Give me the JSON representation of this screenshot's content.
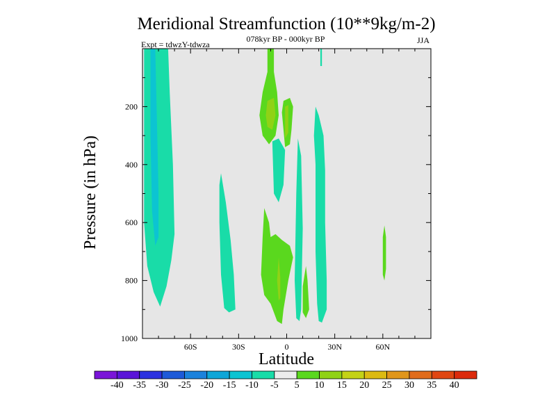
{
  "chart_data": {
    "type": "contour",
    "title": "Meridional Streamfunction (10**9kg/m-2)",
    "subtitle_center": "078kyr BP - 000kyr BP",
    "subtitle_left": "Expt = tdwzY-tdwza",
    "subtitle_right": "JJA",
    "xlabel": "Latitude",
    "ylabel": "Pressure (in hPa)",
    "xlim": [
      -90,
      90
    ],
    "ylim": [
      1000,
      0
    ],
    "x_ticks": [
      {
        "value": -60,
        "label": "60S"
      },
      {
        "value": -30,
        "label": "30S"
      },
      {
        "value": 0,
        "label": "0"
      },
      {
        "value": 30,
        "label": "30N"
      },
      {
        "value": 60,
        "label": "60N"
      }
    ],
    "y_ticks": [
      {
        "value": 200,
        "label": "200"
      },
      {
        "value": 400,
        "label": "400"
      },
      {
        "value": 600,
        "label": "600"
      },
      {
        "value": 800,
        "label": "800"
      },
      {
        "value": 1000,
        "label": "1000"
      }
    ],
    "background_color": "#e6e6e6",
    "colorbar": {
      "labels": [
        "-40",
        "-35",
        "-30",
        "-25",
        "-20",
        "-15",
        "-10",
        "-5",
        "5",
        "10",
        "15",
        "20",
        "25",
        "30",
        "35",
        "40"
      ],
      "colors": [
        "#7a14d8",
        "#5a14d8",
        "#2c32e0",
        "#1e5ad8",
        "#1c82dc",
        "#0ea6d8",
        "#0cc4d2",
        "#19dca8",
        "#ececec",
        "#5ad81e",
        "#90d216",
        "#c4d216",
        "#dcba12",
        "#e0961a",
        "#e06c1c",
        "#e04612",
        "#dc2a0c"
      ]
    },
    "regions": [
      {
        "level": "-5",
        "color": "#19dca8",
        "points": [
          [
            -88,
            0
          ],
          [
            -74,
            0
          ],
          [
            -73,
            150
          ],
          [
            -71,
            400
          ],
          [
            -70,
            640
          ],
          [
            -72,
            730
          ],
          [
            -75,
            820
          ],
          [
            -79,
            890
          ],
          [
            -83,
            840
          ],
          [
            -87,
            750
          ],
          [
            -89,
            600
          ],
          [
            -89,
            0
          ]
        ]
      },
      {
        "level": "-10",
        "color": "#0cc4d2",
        "points": [
          [
            -85,
            0
          ],
          [
            -82,
            0
          ],
          [
            -81,
            250
          ],
          [
            -80,
            500
          ],
          [
            -80,
            650
          ],
          [
            -82,
            680
          ],
          [
            -84,
            560
          ],
          [
            -85,
            300
          ]
        ]
      },
      {
        "level": "-5",
        "color": "#19dca8",
        "points": [
          [
            -41,
            430
          ],
          [
            -38,
            530
          ],
          [
            -35,
            660
          ],
          [
            -33,
            780
          ],
          [
            -32,
            900
          ],
          [
            -36,
            910
          ],
          [
            -39,
            895
          ],
          [
            -41,
            780
          ],
          [
            -42,
            600
          ],
          [
            -42,
            470
          ]
        ]
      },
      {
        "level": "5",
        "color": "#5ad81e",
        "points": [
          [
            -12,
            0
          ],
          [
            -8,
            0
          ],
          [
            -8,
            80
          ],
          [
            -6,
            150
          ],
          [
            -5,
            230
          ],
          [
            -7,
            300
          ],
          [
            -11,
            330
          ],
          [
            -15,
            300
          ],
          [
            -17,
            230
          ],
          [
            -15,
            150
          ],
          [
            -12,
            80
          ]
        ]
      },
      {
        "level": "10",
        "color": "#90d216",
        "points": [
          [
            -12,
            180
          ],
          [
            -8,
            170
          ],
          [
            -7,
            230
          ],
          [
            -9,
            280
          ],
          [
            -12,
            270
          ],
          [
            -13,
            230
          ]
        ]
      },
      {
        "level": "5",
        "color": "#5ad81e",
        "points": [
          [
            -2,
            180
          ],
          [
            2,
            170
          ],
          [
            4,
            200
          ],
          [
            3,
            280
          ],
          [
            2,
            330
          ],
          [
            -1,
            340
          ],
          [
            -2,
            280
          ],
          [
            -3,
            220
          ]
        ]
      },
      {
        "level": "10",
        "color": "#90d216",
        "points": [
          [
            -1,
            200
          ],
          [
            1,
            195
          ],
          [
            1,
            290
          ],
          [
            -1,
            310
          ]
        ]
      },
      {
        "level": "-5",
        "color": "#19dca8",
        "points": [
          [
            -9,
            320
          ],
          [
            -5,
            310
          ],
          [
            -1,
            350
          ],
          [
            -2,
            470
          ],
          [
            -5,
            530
          ],
          [
            -8,
            500
          ]
        ]
      },
      {
        "level": "-5",
        "color": "#19dca8",
        "points": [
          [
            7,
            310
          ],
          [
            9,
            370
          ],
          [
            10,
            620
          ],
          [
            9,
            900
          ],
          [
            8,
            940
          ],
          [
            6,
            930
          ],
          [
            5,
            800
          ],
          [
            6,
            500
          ]
        ]
      },
      {
        "level": "5",
        "color": "#5ad81e",
        "points": [
          [
            -14,
            550
          ],
          [
            -11,
            600
          ],
          [
            -10,
            650
          ],
          [
            -7,
            640
          ],
          [
            -3,
            660
          ],
          [
            2,
            680
          ],
          [
            4,
            720
          ],
          [
            1,
            800
          ],
          [
            -2,
            900
          ],
          [
            -3,
            950
          ],
          [
            -6,
            940
          ],
          [
            -10,
            880
          ],
          [
            -14,
            850
          ],
          [
            -16,
            780
          ],
          [
            -15,
            650
          ]
        ]
      },
      {
        "level": "10",
        "color": "#90d216",
        "points": [
          [
            -5,
            720
          ],
          [
            -4,
            790
          ],
          [
            -4,
            860
          ],
          [
            -5,
            870
          ],
          [
            -6,
            800
          ]
        ]
      },
      {
        "level": "5",
        "color": "#5ad81e",
        "points": [
          [
            12,
            750
          ],
          [
            13,
            800
          ],
          [
            14,
            900
          ],
          [
            12,
            930
          ],
          [
            10,
            910
          ],
          [
            10,
            820
          ]
        ]
      },
      {
        "level": "-5",
        "color": "#19dca8",
        "points": [
          [
            18,
            200
          ],
          [
            20,
            230
          ],
          [
            23,
            300
          ],
          [
            24,
            420
          ],
          [
            24,
            600
          ],
          [
            25,
            800
          ],
          [
            25,
            900
          ],
          [
            22,
            945
          ],
          [
            20,
            940
          ],
          [
            19,
            880
          ],
          [
            18,
            700
          ],
          [
            18,
            400
          ],
          [
            17,
            300
          ]
        ]
      },
      {
        "level": "-5",
        "color": "#19dca8",
        "points": [
          [
            21,
            0
          ],
          [
            22,
            0
          ],
          [
            22,
            60
          ],
          [
            21,
            60
          ]
        ]
      },
      {
        "level": "5",
        "color": "#5ad81e",
        "points": [
          [
            61,
            610
          ],
          [
            62,
            650
          ],
          [
            62,
            760
          ],
          [
            61,
            800
          ],
          [
            60,
            780
          ],
          [
            60,
            650
          ]
        ]
      }
    ]
  }
}
